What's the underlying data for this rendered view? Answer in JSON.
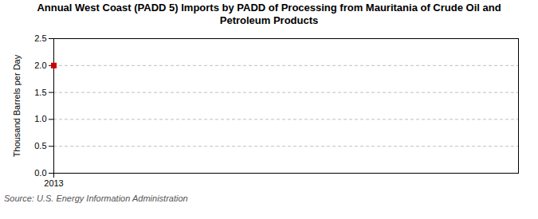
{
  "chart_data": {
    "type": "scatter",
    "title": "Annual West Coast (PADD 5) Imports by PADD of Processing from Mauritania of Crude Oil and\nPetroleum Products",
    "ylabel": "Thousand Barrels per Day",
    "source": "Source: U.S. Energy Information Administration",
    "x": [
      2013
    ],
    "values": [
      2.0
    ],
    "color": "#cc0000",
    "marker": "square",
    "xlim": [
      2013,
      2014.5
    ],
    "xticks": [
      2013
    ],
    "ylim": [
      0.0,
      2.5
    ],
    "yticks": [
      {
        "value": 0.0,
        "label": "0.0"
      },
      0.5,
      {
        "value": 1.0,
        "label": "1.0"
      },
      1.5,
      {
        "value": 2.0,
        "label": "2.0"
      },
      2.5
    ],
    "grid": true
  }
}
